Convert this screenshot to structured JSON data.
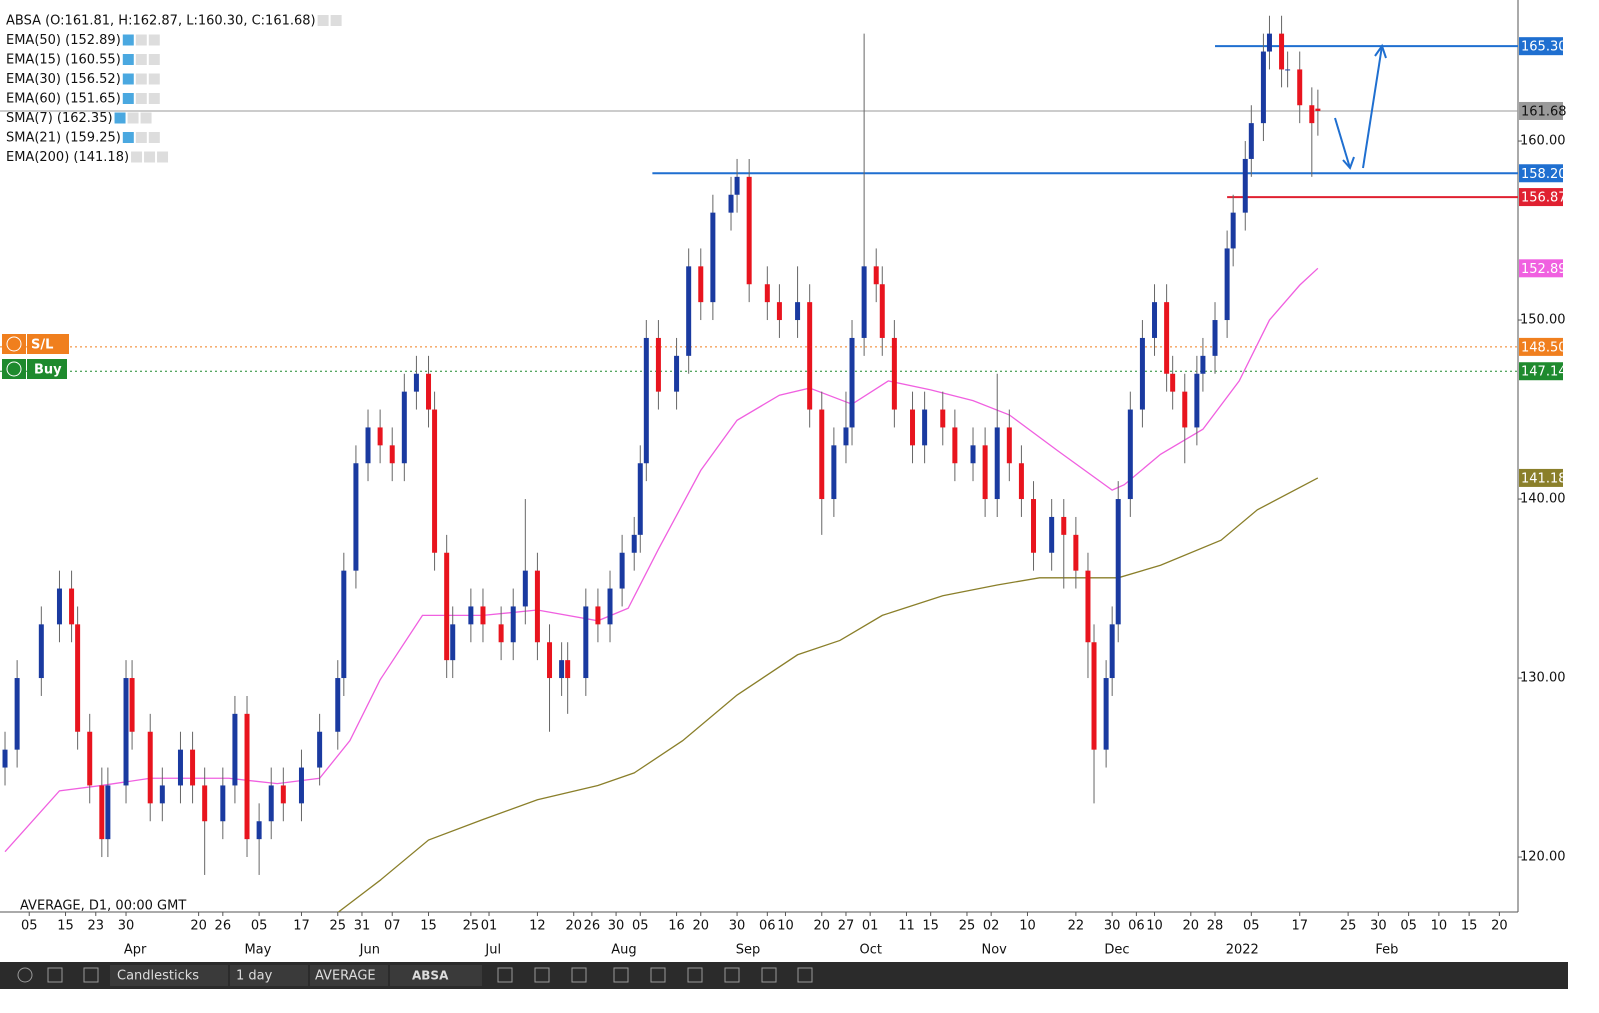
{
  "header": {
    "legend": [
      "ABSA (O:161.81, H:162.87, L:160.30, C:161.68)",
      "EMA(50) (152.89)",
      "EMA(15) (160.55)",
      "EMA(30) (156.52)",
      "EMA(60) (151.65)",
      "SMA(7) (162.35)",
      "SMA(21) (159.25)",
      "EMA(200) (141.18)"
    ],
    "footer": "AVERAGE, D1, 00:00 GMT"
  },
  "order_widgets": [
    {
      "label": "S/L",
      "color": "#f07f1e"
    },
    {
      "label": "Buy",
      "color": "#1e8a2e"
    }
  ],
  "toolbar": {
    "chart_type": "Candlesticks",
    "interval": "1 day",
    "feed": "AVERAGE",
    "symbol": "ABSA"
  },
  "chart_data": {
    "type": "candlestick",
    "up_color": "#1a3aa0",
    "down_color": "#e8141e",
    "xlim": [
      -0.83,
      250.08
    ],
    "ylim": [
      116.93,
      167.6
    ],
    "yticks": [
      {
        "value": 120,
        "label": "120.00"
      },
      {
        "value": 130,
        "label": "130.00"
      },
      {
        "value": 140,
        "label": "140.00"
      },
      {
        "value": 150,
        "label": "150.00"
      },
      {
        "value": 160,
        "label": "160.00"
      }
    ],
    "xticks": [
      {
        "value": 4,
        "label": "05"
      },
      {
        "value": 10,
        "label": "15"
      },
      {
        "value": 15,
        "label": "23"
      },
      {
        "value": 20,
        "label": "30"
      },
      {
        "value": 32,
        "label": "20"
      },
      {
        "value": 36,
        "label": "26"
      },
      {
        "value": 42,
        "label": "05"
      },
      {
        "value": 49,
        "label": "17"
      },
      {
        "value": 55,
        "label": "25"
      },
      {
        "value": 59,
        "label": "31"
      },
      {
        "value": 64,
        "label": "07"
      },
      {
        "value": 70,
        "label": "15"
      },
      {
        "value": 77,
        "label": "25"
      },
      {
        "value": 80,
        "label": "01"
      },
      {
        "value": 88,
        "label": "12"
      },
      {
        "value": 94,
        "label": "20"
      },
      {
        "value": 97,
        "label": "26"
      },
      {
        "value": 101,
        "label": "30"
      },
      {
        "value": 105,
        "label": "05"
      },
      {
        "value": 111,
        "label": "16"
      },
      {
        "value": 115,
        "label": "20"
      },
      {
        "value": 121,
        "label": "30"
      },
      {
        "value": 126,
        "label": "06"
      },
      {
        "value": 129,
        "label": "10"
      },
      {
        "value": 135,
        "label": "20"
      },
      {
        "value": 139,
        "label": "27"
      },
      {
        "value": 143,
        "label": "01"
      },
      {
        "value": 149,
        "label": "11"
      },
      {
        "value": 153,
        "label": "15"
      },
      {
        "value": 159,
        "label": "25"
      },
      {
        "value": 163,
        "label": "02"
      },
      {
        "value": 169,
        "label": "10"
      },
      {
        "value": 177,
        "label": "22"
      },
      {
        "value": 183,
        "label": "30"
      },
      {
        "value": 187,
        "label": "06"
      },
      {
        "value": 190,
        "label": "10"
      },
      {
        "value": 196,
        "label": "20"
      },
      {
        "value": 200,
        "label": "28"
      },
      {
        "value": 206,
        "label": "05"
      },
      {
        "value": 214,
        "label": "17"
      },
      {
        "value": 222,
        "label": "25"
      },
      {
        "value": 227,
        "label": "30"
      },
      {
        "value": 232,
        "label": "05"
      },
      {
        "value": 237,
        "label": "10"
      },
      {
        "value": 242,
        "label": "15"
      },
      {
        "value": 247,
        "label": "20"
      }
    ],
    "month_labels": [
      {
        "value": 21.5,
        "label": "Apr"
      },
      {
        "value": 41.8,
        "label": "May"
      },
      {
        "value": 60.3,
        "label": "Jun"
      },
      {
        "value": 80.7,
        "label": "Jul"
      },
      {
        "value": 102.3,
        "label": "Aug"
      },
      {
        "value": 122.8,
        "label": "Sep"
      },
      {
        "value": 143.1,
        "label": "Oct"
      },
      {
        "value": 163.5,
        "label": "Nov"
      },
      {
        "value": 183.8,
        "label": "Dec"
      },
      {
        "value": 204.5,
        "label": "2022"
      },
      {
        "value": 228.4,
        "label": "Feb"
      }
    ],
    "candles": {
      "x": [
        0,
        2,
        6,
        9,
        11,
        12,
        14,
        16,
        17,
        20,
        21,
        24,
        26,
        29,
        31,
        33,
        36,
        38,
        40,
        42,
        44,
        46,
        49,
        52,
        55,
        56,
        58,
        60,
        62,
        64,
        66,
        68,
        70,
        71,
        73,
        74,
        77,
        79,
        82,
        84,
        86,
        88,
        90,
        92,
        93,
        96,
        98,
        100,
        102,
        104,
        105,
        106,
        108,
        111,
        113,
        115,
        117,
        120,
        121,
        123,
        126,
        128,
        131,
        133,
        135,
        137,
        139,
        140,
        142,
        144,
        145,
        147,
        150,
        152,
        155,
        157,
        160,
        162,
        164,
        166,
        168,
        170,
        173,
        175,
        177,
        179,
        180,
        182,
        183,
        184,
        186,
        188,
        190,
        192,
        193,
        195,
        197,
        198,
        200,
        202,
        203,
        205,
        206,
        208,
        209,
        211,
        212,
        214,
        216,
        217
      ],
      "open": [
        125,
        126,
        130,
        133,
        135,
        133,
        127,
        124,
        121,
        124,
        130,
        127,
        123,
        124,
        126,
        124,
        122,
        124,
        128,
        121,
        122,
        124,
        123,
        125,
        127,
        130,
        136,
        142,
        144,
        143,
        142,
        146,
        147,
        145,
        137,
        131,
        133,
        134,
        133,
        132,
        134,
        136,
        132,
        130,
        131,
        130,
        134,
        133,
        135,
        137,
        138,
        142,
        149,
        146,
        148,
        153,
        151,
        156,
        157,
        158,
        152,
        151,
        150,
        151,
        145,
        140,
        143,
        144,
        149,
        153,
        152,
        149,
        145,
        143,
        145,
        144,
        142,
        143,
        140,
        144,
        142,
        140,
        137,
        139,
        138,
        136,
        132,
        126,
        130,
        133,
        140,
        145,
        149,
        151,
        147,
        146,
        144,
        147,
        148,
        150,
        154,
        156,
        159,
        161,
        165,
        166,
        164,
        164,
        162,
        161.81
      ],
      "high": [
        127,
        131,
        134,
        136,
        136,
        134,
        128,
        125,
        125,
        131,
        131,
        128,
        125,
        127,
        127,
        125,
        125,
        129,
        129,
        123,
        125,
        125,
        126,
        128,
        131,
        137,
        143,
        145,
        145,
        144,
        147,
        148,
        148,
        146,
        138,
        134,
        135,
        135,
        134,
        135,
        140,
        137,
        133,
        132,
        132,
        135,
        135,
        136,
        138,
        139,
        143,
        150,
        150,
        149,
        154,
        154,
        157,
        158,
        159,
        159,
        153,
        152,
        153,
        152,
        146,
        144,
        146,
        150,
        166,
        154,
        153,
        150,
        146,
        146,
        146,
        145,
        144,
        144,
        147,
        145,
        143,
        141,
        140,
        140,
        139,
        137,
        133,
        131,
        134,
        141,
        146,
        150,
        152,
        152,
        148,
        147,
        148,
        149,
        151,
        155,
        157,
        160,
        162,
        166,
        167,
        167,
        165,
        165,
        163,
        162.87
      ],
      "low": [
        124,
        125,
        129,
        132,
        132,
        126,
        123,
        120,
        120,
        123,
        126,
        122,
        122,
        123,
        123,
        119,
        121,
        123,
        120,
        119,
        121,
        122,
        122,
        124,
        126,
        129,
        135,
        141,
        142,
        141,
        141,
        145,
        144,
        136,
        130,
        130,
        132,
        132,
        131,
        131,
        133,
        131,
        127,
        129,
        128,
        129,
        132,
        132,
        134,
        136,
        137,
        141,
        145,
        145,
        147,
        150,
        150,
        155,
        156,
        151,
        150,
        149,
        149,
        144,
        138,
        139,
        142,
        143,
        148,
        151,
        148,
        144,
        142,
        142,
        143,
        141,
        141,
        139,
        139,
        141,
        139,
        136,
        136,
        135,
        135,
        130,
        123,
        125,
        129,
        132,
        139,
        144,
        148,
        146,
        145,
        142,
        143,
        146,
        147,
        149,
        153,
        155,
        158,
        160,
        164,
        163,
        163,
        161,
        158,
        160.3
      ],
      "close": [
        126,
        130,
        133,
        135,
        133,
        127,
        124,
        121,
        124,
        130,
        127,
        123,
        124,
        126,
        124,
        122,
        124,
        128,
        121,
        122,
        124,
        123,
        125,
        127,
        130,
        136,
        142,
        144,
        143,
        142,
        146,
        147,
        145,
        137,
        131,
        133,
        134,
        133,
        132,
        134,
        136,
        132,
        130,
        131,
        130,
        134,
        133,
        135,
        137,
        138,
        142,
        149,
        146,
        148,
        153,
        151,
        156,
        157,
        158,
        152,
        151,
        150,
        151,
        145,
        140,
        143,
        144,
        149,
        153,
        152,
        149,
        145,
        143,
        145,
        144,
        142,
        143,
        140,
        144,
        142,
        140,
        137,
        139,
        138,
        136,
        132,
        126,
        130,
        133,
        140,
        145,
        149,
        151,
        147,
        146,
        144,
        147,
        148,
        150,
        154,
        156,
        159,
        161,
        165,
        166,
        164,
        164,
        162,
        161,
        161.68
      ]
    },
    "series": [
      {
        "name": "EMA(50)",
        "color": "#f060e0",
        "x": [
          0,
          9,
          16,
          24,
          37,
          45,
          52,
          57,
          62,
          69,
          72,
          79,
          88,
          98,
          103,
          108,
          115,
          121,
          128,
          133,
          140,
          146,
          153,
          160,
          166,
          174,
          183,
          185,
          191,
          198,
          204,
          209,
          214,
          217
        ],
        "values": [
          120.3,
          123.7,
          124.0,
          124.4,
          124.4,
          124.1,
          124.4,
          126.5,
          129.9,
          133.5,
          133.5,
          133.5,
          133.8,
          133.2,
          133.9,
          137.2,
          141.6,
          144.4,
          145.8,
          146.2,
          145.3,
          146.6,
          146.1,
          145.5,
          144.7,
          142.7,
          140.5,
          140.8,
          142.5,
          143.9,
          146.6,
          150.0,
          151.95,
          152.89
        ]
      },
      {
        "name": "EMA(200)",
        "color": "#8a7f2a",
        "x": [
          55,
          62,
          70,
          79,
          88,
          98,
          104,
          112,
          121,
          131,
          138,
          145,
          155,
          164,
          171,
          178,
          184,
          191,
          201,
          207,
          217
        ],
        "values": [
          116.9,
          118.7,
          120.95,
          122.1,
          123.2,
          124.0,
          124.7,
          126.5,
          129.05,
          131.3,
          132.1,
          133.5,
          134.6,
          135.2,
          135.6,
          135.6,
          135.6,
          136.3,
          137.7,
          139.4,
          141.18
        ]
      }
    ],
    "price_lines": [
      {
        "value": 165.3,
        "label": "165.30",
        "color": "#1f6fd0",
        "from_x": 200,
        "dash": false
      },
      {
        "value": 161.68,
        "label": "161.68",
        "color": "#9a9a9a",
        "from_x": -0.83,
        "dash": false
      },
      {
        "value": 158.2,
        "label": "158.20",
        "color": "#1f6fd0",
        "from_x": 107,
        "dash": false
      },
      {
        "value": 156.87,
        "label": "156.87",
        "color": "#e02030",
        "from_x": 202,
        "dash": false
      },
      {
        "value": 152.89,
        "label": "152.89",
        "color": "#f060e0",
        "from_x": null,
        "dash": false
      },
      {
        "value": 148.5,
        "label": "148.50",
        "color": "#f07f1e",
        "from_x": -0.83,
        "dash": true
      },
      {
        "value": 147.14,
        "label": "147.14",
        "color": "#1e8a2e",
        "from_x": -0.83,
        "dash": true
      },
      {
        "value": 141.18,
        "label": "141.18",
        "color": "#8a7f2a",
        "from_x": null,
        "dash": false
      }
    ]
  }
}
